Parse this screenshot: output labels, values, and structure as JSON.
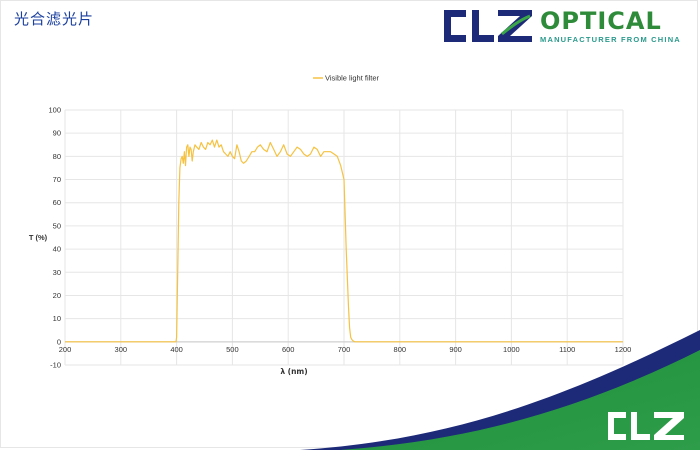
{
  "page": {
    "title": "光合滤光片"
  },
  "brand": {
    "logo_text": "CLZ",
    "name": "OPTICAL",
    "tagline": "MANUFACTURER FROM CHINA"
  },
  "colors": {
    "series_line": "#f5c242",
    "title": "#1a3f9e",
    "brand_green": "#2e8b3a",
    "brand_navy": "#1d2a78",
    "grid": "#e6e6e6"
  },
  "chart_data": {
    "type": "line",
    "title": "",
    "xlabel": "λ (nm)",
    "ylabel": "T (%)",
    "xlim": [
      200,
      1200
    ],
    "ylim": [
      -10,
      100
    ],
    "x_ticks": [
      200,
      300,
      400,
      500,
      600,
      700,
      800,
      900,
      1000,
      1100,
      1200
    ],
    "y_ticks": [
      -10,
      0,
      10,
      20,
      30,
      40,
      50,
      60,
      70,
      80,
      90,
      100
    ],
    "x_tick_labels": [
      "200",
      "300",
      "400",
      "500",
      "600",
      "700",
      "800",
      "900",
      "1000",
      "1100",
      "1200"
    ],
    "y_tick_labels": [
      "-10",
      "0",
      "10",
      "20",
      "30",
      "40",
      "50",
      "60",
      "70",
      "80",
      "90",
      "100"
    ],
    "grid": true,
    "legend": "top-center",
    "series": [
      {
        "name": "Visible light filter",
        "color": "#f5c242",
        "x": [
          200,
          300,
          399,
          400,
          402,
          404,
          406,
          408,
          410,
          412,
          414,
          416,
          418,
          420,
          422,
          424,
          426,
          428,
          430,
          433,
          436,
          440,
          444,
          448,
          452,
          456,
          460,
          464,
          468,
          472,
          476,
          480,
          484,
          488,
          492,
          496,
          500,
          504,
          508,
          512,
          516,
          520,
          525,
          530,
          535,
          540,
          545,
          550,
          556,
          562,
          568,
          574,
          580,
          586,
          592,
          598,
          604,
          610,
          616,
          622,
          628,
          634,
          640,
          646,
          652,
          658,
          664,
          670,
          676,
          682,
          688,
          694,
          700,
          704,
          708,
          710,
          712,
          714,
          716,
          718,
          720,
          724,
          730,
          800,
          900,
          1000,
          1100,
          1200
        ],
        "y": [
          0,
          0,
          0,
          2,
          30,
          60,
          75,
          79,
          80,
          77,
          82,
          76,
          84,
          85,
          80,
          84,
          83,
          78,
          82,
          85,
          84,
          83,
          86,
          84,
          83,
          86,
          85,
          87,
          84,
          87,
          84,
          85,
          82,
          81,
          80,
          82,
          80,
          79,
          85,
          82,
          78,
          77,
          78,
          80,
          82,
          82,
          84,
          85,
          83,
          82,
          86,
          83,
          80,
          82,
          85,
          81,
          80,
          82,
          84,
          83,
          81,
          80,
          81,
          84,
          83,
          80,
          82,
          82,
          82,
          81,
          80,
          76,
          70,
          40,
          15,
          6,
          2,
          1,
          0.5,
          0.2,
          0,
          0,
          0,
          0,
          0,
          0,
          0,
          0
        ]
      }
    ]
  }
}
